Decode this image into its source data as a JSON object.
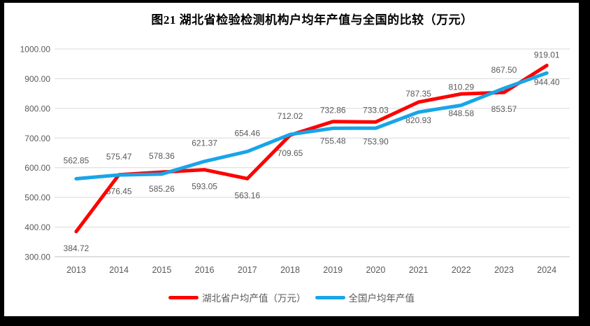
{
  "chart_data": {
    "type": "line",
    "title": "图21 湖北省检验检测机构户均年产值与全国的比较（万元）",
    "categories": [
      "2013",
      "2014",
      "2015",
      "2016",
      "2017",
      "2018",
      "2019",
      "2020",
      "2021",
      "2022",
      "2023",
      "2024"
    ],
    "series": [
      {
        "name": "湖北省户均产值（万元）",
        "color": "#FE0000",
        "label_position": "below",
        "values": [
          384.72,
          576.45,
          585.26,
          593.05,
          563.16,
          709.65,
          755.48,
          753.9,
          820.93,
          848.58,
          853.57,
          944.4
        ]
      },
      {
        "name": "全国户均年产值",
        "color": "#18A5E9",
        "label_position": "above",
        "values": [
          562.85,
          575.47,
          578.36,
          621.37,
          654.46,
          712.02,
          732.86,
          733.03,
          787.35,
          810.29,
          867.5,
          919.01
        ]
      }
    ],
    "y_axis": {
      "min": 300,
      "max": 1000,
      "step": 100,
      "tick_labels": [
        "1000.00",
        "900.00",
        "800.00",
        "700.00",
        "600.00",
        "500.00",
        "400.00",
        "300.00"
      ]
    },
    "x_axis": {
      "tick_labels": [
        "2013",
        "2014",
        "2015",
        "2016",
        "2017",
        "2018",
        "2019",
        "2020",
        "2021",
        "2022",
        "2023",
        "2024"
      ]
    },
    "grid": true,
    "legend_position": "bottom",
    "colors": {
      "tick_label": "#595959",
      "data_label": "#595959",
      "gridline": "#D9D9D9",
      "axis_line": "#BFBFBF",
      "title": "#000000",
      "page_frame": "#000000",
      "page_background": "#FFFFFF"
    }
  }
}
